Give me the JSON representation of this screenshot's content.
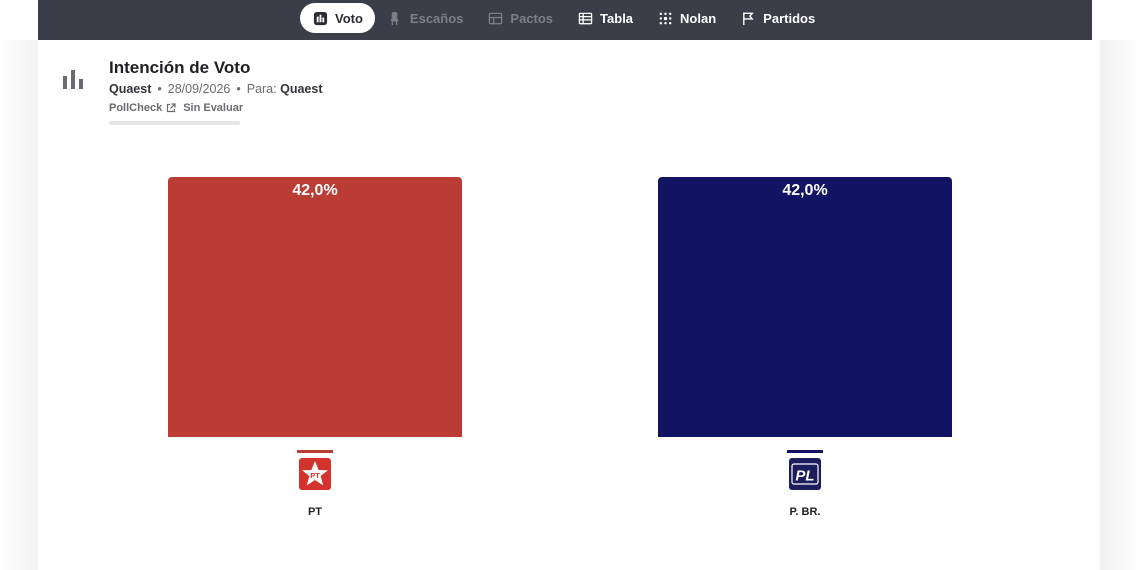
{
  "nav": {
    "tabs": [
      {
        "label": "Voto",
        "icon": "bar-chart-icon",
        "state": "active"
      },
      {
        "label": "Escaños",
        "icon": "seat-icon",
        "state": "disabled"
      },
      {
        "label": "Pactos",
        "icon": "pact-icon",
        "state": "disabled"
      },
      {
        "label": "Tabla",
        "icon": "table-icon",
        "state": "normal"
      },
      {
        "label": "Nolan",
        "icon": "grid-dots-icon",
        "state": "normal"
      },
      {
        "label": "Partidos",
        "icon": "flag-icon",
        "state": "normal"
      }
    ]
  },
  "header": {
    "title": "Intención de Voto",
    "pollster": "Quaest",
    "date": "28/09/2026",
    "for_label": "Para:",
    "for_value": "Quaest",
    "pollcheck": "PollCheck",
    "rating": "Sin Evaluar"
  },
  "chart_data": {
    "type": "bar",
    "categories": [
      "PT",
      "P. BR."
    ],
    "values": [
      42.0,
      42.0
    ],
    "data_labels": [
      "42,0%",
      "42,0%"
    ],
    "colors": [
      "#bb3c34",
      "#121463"
    ],
    "logos": [
      "PT",
      "PL"
    ],
    "ylim": [
      0,
      42.0
    ]
  }
}
